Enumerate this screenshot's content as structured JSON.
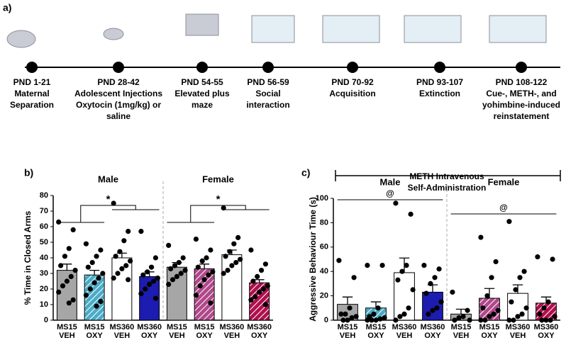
{
  "panel_labels": [
    "a)",
    "b)",
    "c)"
  ],
  "timeline": {
    "items": [
      {
        "period": "PND 1-21",
        "lines": [
          "Maternal",
          "Separation"
        ]
      },
      {
        "period": "PND 28-42",
        "lines": [
          "Adolescent  Injections",
          "Oxytocin (1mg/kg) or",
          "saline"
        ]
      },
      {
        "period": "PND 54-55",
        "lines": [
          "Elevated plus",
          "maze"
        ]
      },
      {
        "period": "PND 56-59",
        "lines": [
          "Social",
          "interaction"
        ]
      },
      {
        "period": "PND 70-92",
        "lines": [
          "Acquisition"
        ]
      },
      {
        "period": "PND 93-107",
        "lines": [
          "Extinction"
        ]
      },
      {
        "period": "PND 108-122",
        "lines": [
          "Cue-, METH-, and",
          "yohimbine-induced",
          "reinstatement"
        ]
      }
    ],
    "bracket": [
      "METH Intravenous",
      "Self-Administration"
    ]
  },
  "chart_data": [
    {
      "type": "bar",
      "y_label": "% Time in Closed Arms",
      "groups": [
        "Male",
        "Female"
      ],
      "annotations": [
        "*",
        "*"
      ],
      "categories": [
        [
          "MS15",
          "VEH"
        ],
        [
          "MS15",
          "OXY"
        ],
        [
          "MS360",
          "VEH"
        ],
        [
          "MS360",
          "OXY"
        ],
        [
          "MS15",
          "VEH"
        ],
        [
          "MS15",
          "OXY"
        ],
        [
          "MS360",
          "VEH"
        ],
        [
          "MS360",
          "OXY"
        ]
      ],
      "values": [
        32,
        29,
        40,
        28,
        34,
        33,
        42,
        24
      ],
      "errors": [
        4,
        3,
        3,
        3,
        3,
        3,
        3,
        2
      ],
      "colors": [
        "#a6a6a6",
        "#4bacc6",
        "#ffffff",
        "#1c1cb0",
        "#a6a6a6",
        "#b0488a",
        "#ffffff",
        "#b0104e"
      ],
      "hatch": [
        false,
        true,
        false,
        false,
        false,
        true,
        false,
        true
      ],
      "points": [
        [
          63,
          58,
          46,
          41,
          35,
          32,
          28,
          25,
          22,
          18,
          13,
          11
        ],
        [
          49,
          45,
          41,
          37,
          34,
          30,
          27,
          24,
          20,
          16,
          12,
          9
        ],
        [
          75,
          57,
          51,
          44,
          41,
          38,
          35,
          33,
          30,
          27,
          26
        ],
        [
          57,
          40,
          34,
          31,
          29,
          27,
          25,
          23,
          20,
          17,
          14
        ],
        [
          48,
          40,
          37,
          35,
          33,
          32,
          30,
          28,
          26,
          23
        ],
        [
          52,
          45,
          40,
          38,
          34,
          31,
          29,
          26,
          22,
          16,
          11
        ],
        [
          72,
          53,
          49,
          44,
          41,
          39,
          37,
          35,
          32,
          30
        ],
        [
          45,
          36,
          32,
          28,
          25,
          22,
          20,
          18,
          15,
          13,
          10
        ]
      ],
      "ylim": [
        0,
        80
      ],
      "yticks": [
        0,
        10,
        20,
        30,
        40,
        50,
        60,
        70,
        80
      ]
    },
    {
      "type": "bar",
      "y_label": "Aggressive Behaviour Time (s)",
      "groups": [
        "Male",
        "Female"
      ],
      "annotations": [
        "@",
        "@"
      ],
      "categories": [
        [
          "MS15",
          "VEH"
        ],
        [
          "MS15",
          "OXY"
        ],
        [
          "MS360",
          "VEH"
        ],
        [
          "MS360",
          "OXY"
        ],
        [
          "MS15",
          "VEH"
        ],
        [
          "MS15",
          "OXY"
        ],
        [
          "MS360",
          "VEH"
        ],
        [
          "MS360",
          "OXY"
        ]
      ],
      "values": [
        13,
        10,
        39,
        23,
        5,
        18,
        22,
        14
      ],
      "errors": [
        6,
        5,
        12,
        6,
        4,
        8,
        7,
        5
      ],
      "colors": [
        "#a6a6a6",
        "#4bacc6",
        "#ffffff",
        "#1c1cb0",
        "#a6a6a6",
        "#b0488a",
        "#ffffff",
        "#b0104e"
      ],
      "hatch": [
        false,
        true,
        false,
        false,
        false,
        true,
        false,
        true
      ],
      "points": [
        [
          49,
          35,
          10,
          5,
          5,
          3,
          2,
          0,
          0
        ],
        [
          45,
          45,
          10,
          5,
          3,
          2,
          1,
          0,
          0,
          0
        ],
        [
          96,
          87,
          45,
          40,
          33,
          25,
          10,
          5,
          3,
          0
        ],
        [
          45,
          42,
          35,
          30,
          22,
          15,
          10,
          8,
          5
        ],
        [
          23,
          8,
          3,
          2,
          0,
          0
        ],
        [
          68,
          48,
          35,
          20,
          10,
          8,
          5,
          3,
          0,
          0
        ],
        [
          81,
          40,
          35,
          25,
          15,
          10,
          5,
          3,
          0,
          0
        ],
        [
          52,
          50,
          15,
          10,
          5,
          3,
          0,
          0,
          0
        ]
      ],
      "ylim": [
        0,
        100
      ],
      "yticks": [
        0,
        20,
        40,
        60,
        80,
        100
      ]
    }
  ]
}
